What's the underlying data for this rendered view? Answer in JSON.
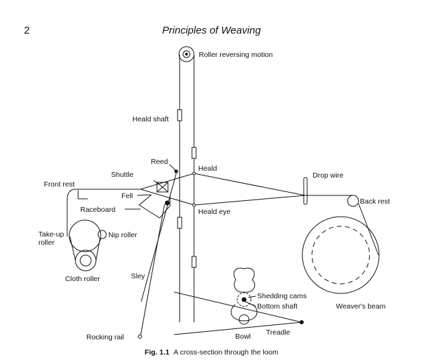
{
  "page": {
    "number": "2",
    "running_head": "Principles of Weaving"
  },
  "figure": {
    "caption_label": "Fig. 1.1",
    "caption_text": "A cross-section through the loom",
    "labels": {
      "roller_reversing_motion": "Roller reversing motion",
      "heald_shaft": "Heald shaft",
      "reed": "Reed",
      "heald": "Heald",
      "shuttle": "Shuttle",
      "drop_wire": "Drop wire",
      "front_rest": "Front rest",
      "fell": "Fell",
      "raceboard": "Raceboard",
      "back_rest": "Back rest",
      "heald_eye": "Heald eye",
      "take_up_roller_1": "Take-up",
      "take_up_roller_2": "roller",
      "nip_roller": "Nip roller",
      "cloth_roller": "Cloth roller",
      "sley": "Sley",
      "shedding_cams": "Shedding cams",
      "bottom_shaft": "Bottom shaft",
      "weavers_beam": "Weaver's beam",
      "treadle": "Treadle",
      "bowl": "Bowl",
      "rocking_rail": "Rocking rail"
    }
  }
}
